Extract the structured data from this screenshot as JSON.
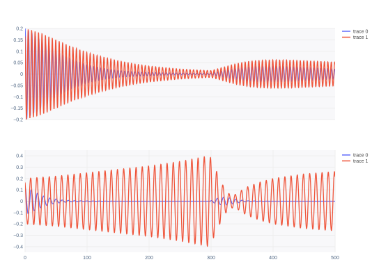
{
  "colors": {
    "plot_background": "#f8f8fa",
    "gridline": "#eeeeee",
    "zeroline": "#e0e0e0",
    "tick_text": "#506784",
    "legend_text": "#444444"
  },
  "chart_data": [
    {
      "type": "line",
      "title": "",
      "xlabel": "",
      "ylabel": "",
      "xlim": [
        0,
        500
      ],
      "ylim": [
        -0.2,
        0.2
      ],
      "xticks": [],
      "yticks": [
        -0.2,
        -0.15,
        -0.1,
        -0.05,
        0,
        0.05,
        0.1,
        0.15,
        0.2
      ],
      "ytick_labels": [
        "−0.2",
        "−0.15",
        "−0.1",
        "−0.05",
        "0",
        "0.05",
        "0.1",
        "0.15",
        "0.2"
      ],
      "grid": true,
      "legend": "top-right",
      "series": [
        {
          "name": "trace 0",
          "color": "#636efa",
          "x": [
            0,
            25,
            50,
            75,
            100,
            125,
            150,
            175,
            200,
            225,
            250,
            275,
            300,
            320,
            340,
            360,
            380,
            400,
            425,
            450,
            475,
            500
          ],
          "envelope": [
            0.2,
            0.15,
            0.1,
            0.065,
            0.04,
            0.025,
            0.015,
            0.01,
            0.007,
            0.005,
            0.004,
            0.003,
            0.003,
            0.015,
            0.025,
            0.032,
            0.035,
            0.035,
            0.033,
            0.03,
            0.026,
            0.022
          ],
          "cycles_per_100": 18
        },
        {
          "name": "trace 1",
          "color": "#ef553b",
          "x": [
            0,
            25,
            50,
            75,
            100,
            125,
            150,
            175,
            200,
            225,
            250,
            275,
            300,
            320,
            340,
            360,
            380,
            400,
            425,
            450,
            475,
            500
          ],
          "envelope": [
            0.2,
            0.18,
            0.15,
            0.12,
            0.095,
            0.075,
            0.058,
            0.045,
            0.035,
            0.028,
            0.022,
            0.018,
            0.015,
            0.03,
            0.045,
            0.055,
            0.06,
            0.062,
            0.061,
            0.058,
            0.055,
            0.052
          ],
          "cycles_per_100": 18
        }
      ]
    },
    {
      "type": "line",
      "title": "",
      "xlabel": "",
      "ylabel": "",
      "xlim": [
        0,
        500
      ],
      "ylim": [
        -0.45,
        0.45
      ],
      "xticks": [
        0,
        100,
        200,
        300,
        400,
        500
      ],
      "xtick_labels": [
        "0",
        "100",
        "200",
        "300",
        "400",
        "500"
      ],
      "yticks": [
        -0.4,
        -0.3,
        -0.2,
        -0.1,
        0,
        0.1,
        0.2,
        0.3,
        0.4
      ],
      "ytick_labels": [
        "−0.4",
        "−0.3",
        "−0.2",
        "−0.1",
        "0",
        "0.1",
        "0.2",
        "0.3",
        "0.4"
      ],
      "grid": true,
      "legend": "top-right",
      "series": [
        {
          "name": "trace 0",
          "color": "#636efa",
          "x": [
            0,
            10,
            20,
            30,
            40,
            60,
            80,
            100,
            150,
            200,
            250,
            299,
            300,
            310,
            320,
            330,
            340,
            350,
            360,
            380,
            400,
            450,
            500
          ],
          "envelope": [
            0.12,
            0.1,
            0.07,
            0.045,
            0.028,
            0.01,
            0.004,
            0.002,
            0,
            0,
            0,
            0,
            0.005,
            0.025,
            0.035,
            0.03,
            0.018,
            0.008,
            0.003,
            0.001,
            0,
            0,
            0
          ],
          "cycles_per_100": 10
        },
        {
          "name": "trace 1",
          "color": "#ef553b",
          "x": [
            0,
            50,
            100,
            150,
            200,
            250,
            298,
            300,
            310,
            320,
            330,
            340,
            350,
            360,
            380,
            400,
            425,
            450,
            475,
            500
          ],
          "envelope": [
            0.2,
            0.22,
            0.25,
            0.28,
            0.31,
            0.35,
            0.4,
            0.37,
            0.25,
            0.13,
            0.06,
            0.06,
            0.1,
            0.13,
            0.17,
            0.2,
            0.22,
            0.24,
            0.25,
            0.26
          ],
          "cycles_per_100": 10
        }
      ]
    }
  ]
}
